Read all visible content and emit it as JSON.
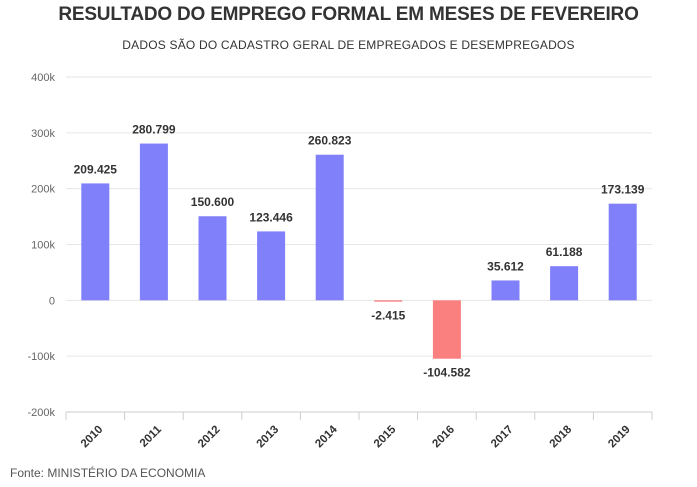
{
  "chart_data": {
    "type": "bar",
    "title": "RESULTADO DO EMPREGO FORMAL EM MESES DE FEVEREIRO",
    "subtitle": "DADOS SÃO DO CADASTRO GERAL DE EMPREGADOS E DESEMPREGADOS",
    "source": "Fonte: MINISTÉRIO DA ECONOMIA",
    "categories": [
      "2010",
      "2011",
      "2012",
      "2013",
      "2014",
      "2015",
      "2016",
      "2017",
      "2018",
      "2019"
    ],
    "values": [
      209425,
      280799,
      150600,
      123446,
      260823,
      -2415,
      -104582,
      35612,
      61188,
      173139
    ],
    "data_labels": [
      "209.425",
      "280.799",
      "150.600",
      "123.446",
      "260.823",
      "-2.415",
      "-104.582",
      "35.612",
      "61.188",
      "173.139"
    ],
    "ylim": [
      -200000,
      400000
    ],
    "yticks": [
      -200000,
      -100000,
      0,
      100000,
      200000,
      300000,
      400000
    ],
    "ytick_labels": [
      "-200k",
      "-100k",
      "0",
      "100k",
      "200k",
      "300k",
      "400k"
    ],
    "xlabel": "",
    "ylabel": "",
    "grid": true,
    "colors": {
      "positive": "#8080fa",
      "negative": "#fa8080",
      "grid": "#e6e6e6"
    }
  }
}
